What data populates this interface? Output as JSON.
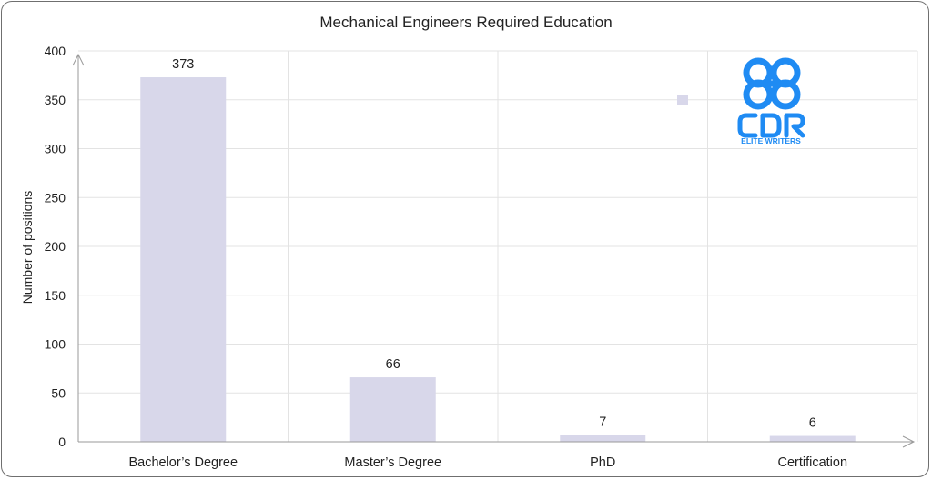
{
  "chart_data": {
    "type": "bar",
    "title": "Mechanical Engineers Required Education",
    "xlabel": "",
    "ylabel": "Number of positions",
    "categories": [
      "Bachelor’s Degree",
      "Master’s Degree",
      "PhD",
      "Certification"
    ],
    "values": [
      373,
      66,
      7,
      6
    ],
    "ylim": [
      0,
      400
    ],
    "yticks": [
      0,
      50,
      100,
      150,
      200,
      250,
      300,
      350,
      400
    ],
    "grid": true,
    "bar_color": "#d8d7ea",
    "legend": "none"
  },
  "logo": {
    "mark_text": "CDR",
    "tagline": "ELITE WRITERS",
    "color": "#1f8bf3"
  }
}
